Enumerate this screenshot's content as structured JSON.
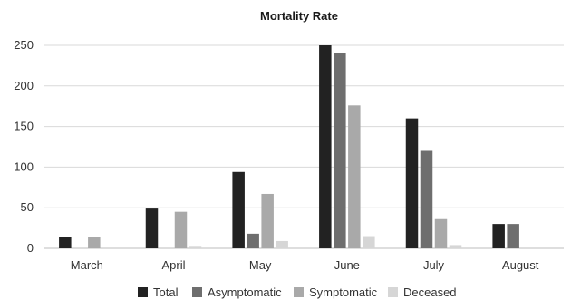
{
  "chart_data": {
    "type": "bar",
    "title": "Mortality Rate",
    "xlabel": "",
    "ylabel": "",
    "categories": [
      "March",
      "April",
      "May",
      "June",
      "July",
      "August"
    ],
    "ylim": [
      0,
      250
    ],
    "yticks": [
      0,
      50,
      100,
      150,
      200,
      250
    ],
    "grid": true,
    "legend_position": "bottom",
    "series": [
      {
        "name": "Total",
        "color": "#222222",
        "values": [
          14,
          49,
          94,
          250,
          160,
          30
        ]
      },
      {
        "name": "Asymptomatic",
        "color": "#6e6e6e",
        "values": [
          0,
          0,
          18,
          241,
          120,
          30
        ]
      },
      {
        "name": "Symptomatic",
        "color": "#a9a9a9",
        "values": [
          14,
          45,
          67,
          176,
          36,
          0
        ]
      },
      {
        "name": "Deceased",
        "color": "#d6d6d6",
        "values": [
          0,
          3,
          9,
          15,
          4,
          0
        ]
      }
    ]
  }
}
